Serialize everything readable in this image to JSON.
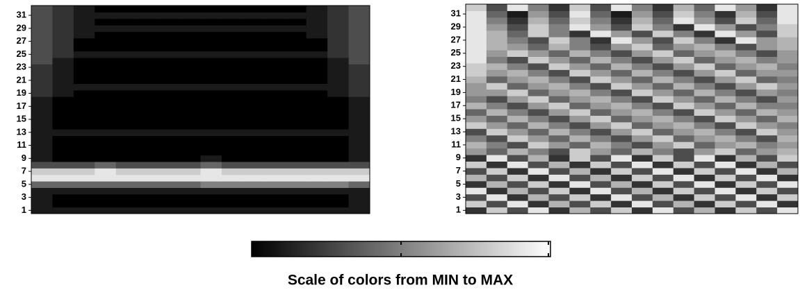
{
  "chart_data": [
    {
      "type": "heatmap",
      "ylim": [
        0.5,
        32.5
      ],
      "yticks": [
        1,
        3,
        5,
        7,
        9,
        11,
        13,
        15,
        17,
        19,
        21,
        23,
        25,
        27,
        29,
        31
      ],
      "z": [
        [
          0.1,
          0.1,
          0.1,
          0.1,
          0.1,
          0.1,
          0.1,
          0.1,
          0.1,
          0.1,
          0.1,
          0.1,
          0.1,
          0.1,
          0.1,
          0.1
        ],
        [
          0.1,
          0.0,
          0.0,
          0.0,
          0.0,
          0.0,
          0.0,
          0.0,
          0.0,
          0.0,
          0.0,
          0.0,
          0.0,
          0.0,
          0.0,
          0.1
        ],
        [
          0.1,
          0.0,
          0.0,
          0.0,
          0.0,
          0.0,
          0.0,
          0.0,
          0.0,
          0.0,
          0.0,
          0.0,
          0.0,
          0.0,
          0.0,
          0.1
        ],
        [
          0.1,
          0.1,
          0.1,
          0.1,
          0.1,
          0.1,
          0.1,
          0.1,
          0.1,
          0.1,
          0.1,
          0.1,
          0.1,
          0.1,
          0.1,
          0.1
        ],
        [
          0.4,
          0.4,
          0.4,
          0.4,
          0.4,
          0.4,
          0.4,
          0.4,
          0.5,
          0.5,
          0.5,
          0.5,
          0.5,
          0.5,
          0.5,
          0.4
        ],
        [
          0.9,
          0.9,
          0.9,
          0.9,
          0.9,
          0.9,
          0.9,
          0.9,
          0.9,
          0.9,
          0.9,
          0.9,
          0.9,
          0.9,
          0.9,
          0.9
        ],
        [
          0.8,
          0.8,
          0.8,
          0.9,
          0.8,
          0.8,
          0.8,
          0.8,
          0.9,
          0.8,
          0.8,
          0.8,
          0.8,
          0.8,
          0.8,
          0.8
        ],
        [
          0.3,
          0.3,
          0.3,
          0.4,
          0.3,
          0.3,
          0.3,
          0.3,
          0.4,
          0.3,
          0.3,
          0.3,
          0.3,
          0.3,
          0.3,
          0.3
        ],
        [
          0.1,
          0.0,
          0.0,
          0.0,
          0.0,
          0.0,
          0.0,
          0.0,
          0.1,
          0.0,
          0.0,
          0.0,
          0.0,
          0.0,
          0.0,
          0.1
        ],
        [
          0.1,
          0.0,
          0.0,
          0.0,
          0.0,
          0.0,
          0.0,
          0.0,
          0.0,
          0.0,
          0.0,
          0.0,
          0.0,
          0.0,
          0.0,
          0.1
        ],
        [
          0.1,
          0.0,
          0.0,
          0.0,
          0.0,
          0.0,
          0.0,
          0.0,
          0.0,
          0.0,
          0.0,
          0.0,
          0.0,
          0.0,
          0.0,
          0.1
        ],
        [
          0.1,
          0.0,
          0.0,
          0.0,
          0.0,
          0.0,
          0.0,
          0.0,
          0.0,
          0.0,
          0.0,
          0.0,
          0.0,
          0.0,
          0.0,
          0.1
        ],
        [
          0.1,
          0.1,
          0.1,
          0.1,
          0.1,
          0.1,
          0.1,
          0.1,
          0.1,
          0.1,
          0.1,
          0.1,
          0.1,
          0.1,
          0.1,
          0.1
        ],
        [
          0.1,
          0.0,
          0.0,
          0.0,
          0.0,
          0.0,
          0.0,
          0.0,
          0.0,
          0.0,
          0.0,
          0.0,
          0.0,
          0.0,
          0.0,
          0.1
        ],
        [
          0.1,
          0.0,
          0.0,
          0.0,
          0.0,
          0.0,
          0.0,
          0.0,
          0.0,
          0.0,
          0.0,
          0.0,
          0.0,
          0.0,
          0.0,
          0.1
        ],
        [
          0.1,
          0.0,
          0.0,
          0.0,
          0.0,
          0.0,
          0.0,
          0.0,
          0.0,
          0.0,
          0.0,
          0.0,
          0.0,
          0.0,
          0.0,
          0.1
        ],
        [
          0.1,
          0.0,
          0.0,
          0.0,
          0.0,
          0.0,
          0.0,
          0.0,
          0.0,
          0.0,
          0.0,
          0.0,
          0.0,
          0.0,
          0.0,
          0.1
        ],
        [
          0.1,
          0.0,
          0.0,
          0.0,
          0.0,
          0.0,
          0.0,
          0.0,
          0.0,
          0.0,
          0.0,
          0.0,
          0.0,
          0.0,
          0.0,
          0.1
        ],
        [
          0.2,
          0.1,
          0.0,
          0.0,
          0.0,
          0.0,
          0.0,
          0.0,
          0.0,
          0.0,
          0.0,
          0.0,
          0.0,
          0.0,
          0.1,
          0.2
        ],
        [
          0.2,
          0.1,
          0.1,
          0.1,
          0.1,
          0.1,
          0.1,
          0.1,
          0.1,
          0.1,
          0.1,
          0.1,
          0.1,
          0.1,
          0.1,
          0.2
        ],
        [
          0.2,
          0.1,
          0.0,
          0.0,
          0.0,
          0.0,
          0.0,
          0.0,
          0.0,
          0.0,
          0.0,
          0.0,
          0.0,
          0.0,
          0.1,
          0.2
        ],
        [
          0.2,
          0.1,
          0.0,
          0.0,
          0.0,
          0.0,
          0.0,
          0.0,
          0.0,
          0.0,
          0.0,
          0.0,
          0.0,
          0.0,
          0.1,
          0.2
        ],
        [
          0.2,
          0.1,
          0.0,
          0.0,
          0.0,
          0.0,
          0.0,
          0.0,
          0.0,
          0.0,
          0.0,
          0.0,
          0.0,
          0.0,
          0.1,
          0.2
        ],
        [
          0.3,
          0.1,
          0.0,
          0.0,
          0.0,
          0.0,
          0.0,
          0.0,
          0.0,
          0.0,
          0.0,
          0.0,
          0.0,
          0.0,
          0.1,
          0.3
        ],
        [
          0.3,
          0.2,
          0.1,
          0.1,
          0.1,
          0.1,
          0.1,
          0.1,
          0.1,
          0.1,
          0.1,
          0.1,
          0.1,
          0.1,
          0.2,
          0.3
        ],
        [
          0.3,
          0.2,
          0.0,
          0.0,
          0.0,
          0.0,
          0.0,
          0.0,
          0.0,
          0.0,
          0.0,
          0.0,
          0.0,
          0.0,
          0.2,
          0.3
        ],
        [
          0.3,
          0.2,
          0.0,
          0.0,
          0.0,
          0.0,
          0.0,
          0.0,
          0.0,
          0.0,
          0.0,
          0.0,
          0.0,
          0.0,
          0.2,
          0.3
        ],
        [
          0.3,
          0.2,
          0.1,
          0.0,
          0.0,
          0.0,
          0.0,
          0.0,
          0.0,
          0.0,
          0.0,
          0.0,
          0.0,
          0.1,
          0.2,
          0.3
        ],
        [
          0.3,
          0.2,
          0.1,
          0.1,
          0.1,
          0.1,
          0.1,
          0.1,
          0.1,
          0.1,
          0.1,
          0.1,
          0.1,
          0.1,
          0.2,
          0.3
        ],
        [
          0.3,
          0.2,
          0.1,
          0.0,
          0.0,
          0.0,
          0.0,
          0.0,
          0.0,
          0.0,
          0.0,
          0.0,
          0.0,
          0.1,
          0.2,
          0.3
        ],
        [
          0.3,
          0.2,
          0.1,
          0.1,
          0.1,
          0.1,
          0.1,
          0.1,
          0.1,
          0.1,
          0.1,
          0.1,
          0.1,
          0.1,
          0.2,
          0.3
        ],
        [
          0.3,
          0.2,
          0.1,
          0.0,
          0.0,
          0.0,
          0.0,
          0.0,
          0.0,
          0.0,
          0.0,
          0.0,
          0.0,
          0.1,
          0.2,
          0.3
        ]
      ]
    },
    {
      "type": "heatmap",
      "ylim": [
        0.5,
        32.5
      ],
      "yticks": [
        1,
        3,
        5,
        7,
        9,
        11,
        13,
        15,
        17,
        19,
        21,
        23,
        25,
        27,
        29,
        31
      ],
      "z": [
        [
          0.2,
          0.8,
          0.3,
          0.9,
          0.2,
          0.7,
          0.3,
          0.8,
          0.2,
          0.9,
          0.3,
          0.7,
          0.2,
          0.8,
          0.3,
          0.9
        ],
        [
          0.8,
          0.3,
          0.9,
          0.2,
          0.7,
          0.3,
          0.8,
          0.2,
          0.9,
          0.3,
          0.7,
          0.2,
          0.8,
          0.3,
          0.9,
          0.2
        ],
        [
          0.3,
          0.9,
          0.2,
          0.7,
          0.3,
          0.8,
          0.2,
          0.9,
          0.3,
          0.7,
          0.2,
          0.8,
          0.3,
          0.9,
          0.2,
          0.8
        ],
        [
          0.9,
          0.2,
          0.7,
          0.3,
          0.8,
          0.2,
          0.9,
          0.3,
          0.7,
          0.2,
          0.8,
          0.3,
          0.9,
          0.2,
          0.8,
          0.3
        ],
        [
          0.2,
          0.7,
          0.3,
          0.8,
          0.2,
          0.9,
          0.3,
          0.7,
          0.2,
          0.8,
          0.3,
          0.9,
          0.2,
          0.8,
          0.3,
          0.9
        ],
        [
          0.7,
          0.3,
          0.8,
          0.2,
          0.9,
          0.3,
          0.7,
          0.2,
          0.8,
          0.3,
          0.9,
          0.2,
          0.8,
          0.3,
          0.9,
          0.2
        ],
        [
          0.3,
          0.8,
          0.2,
          0.9,
          0.3,
          0.7,
          0.2,
          0.8,
          0.3,
          0.9,
          0.2,
          0.8,
          0.3,
          0.9,
          0.2,
          0.7
        ],
        [
          0.8,
          0.2,
          0.9,
          0.3,
          0.7,
          0.2,
          0.8,
          0.3,
          0.9,
          0.2,
          0.8,
          0.3,
          0.9,
          0.2,
          0.7,
          0.3
        ],
        [
          0.2,
          0.9,
          0.3,
          0.7,
          0.2,
          0.8,
          0.3,
          0.9,
          0.2,
          0.8,
          0.3,
          0.9,
          0.2,
          0.7,
          0.3,
          0.8
        ],
        [
          0.6,
          0.4,
          0.7,
          0.5,
          0.3,
          0.8,
          0.6,
          0.4,
          0.7,
          0.5,
          0.3,
          0.6,
          0.8,
          0.4,
          0.6,
          0.7
        ],
        [
          0.7,
          0.5,
          0.3,
          0.8,
          0.6,
          0.4,
          0.7,
          0.5,
          0.3,
          0.6,
          0.8,
          0.4,
          0.6,
          0.7,
          0.5,
          0.6
        ],
        [
          0.5,
          0.3,
          0.8,
          0.6,
          0.4,
          0.7,
          0.5,
          0.3,
          0.6,
          0.8,
          0.4,
          0.6,
          0.7,
          0.5,
          0.3,
          0.7
        ],
        [
          0.3,
          0.8,
          0.6,
          0.4,
          0.7,
          0.5,
          0.3,
          0.6,
          0.8,
          0.4,
          0.6,
          0.7,
          0.5,
          0.3,
          0.8,
          0.6
        ],
        [
          0.8,
          0.6,
          0.4,
          0.7,
          0.5,
          0.3,
          0.6,
          0.8,
          0.4,
          0.6,
          0.7,
          0.5,
          0.3,
          0.8,
          0.6,
          0.5
        ],
        [
          0.6,
          0.4,
          0.7,
          0.5,
          0.3,
          0.6,
          0.8,
          0.4,
          0.6,
          0.7,
          0.5,
          0.3,
          0.8,
          0.6,
          0.4,
          0.7
        ],
        [
          0.4,
          0.7,
          0.5,
          0.3,
          0.6,
          0.8,
          0.4,
          0.6,
          0.7,
          0.5,
          0.3,
          0.8,
          0.6,
          0.4,
          0.7,
          0.6
        ],
        [
          0.7,
          0.5,
          0.3,
          0.6,
          0.8,
          0.4,
          0.6,
          0.7,
          0.5,
          0.3,
          0.8,
          0.6,
          0.4,
          0.7,
          0.5,
          0.5
        ],
        [
          0.5,
          0.3,
          0.6,
          0.8,
          0.4,
          0.6,
          0.7,
          0.5,
          0.3,
          0.8,
          0.6,
          0.4,
          0.7,
          0.5,
          0.3,
          0.6
        ],
        [
          0.6,
          0.6,
          0.8,
          0.4,
          0.6,
          0.7,
          0.5,
          0.3,
          0.8,
          0.6,
          0.4,
          0.7,
          0.5,
          0.3,
          0.6,
          0.5
        ],
        [
          0.6,
          0.8,
          0.4,
          0.6,
          0.7,
          0.5,
          0.3,
          0.8,
          0.6,
          0.4,
          0.7,
          0.5,
          0.3,
          0.6,
          0.8,
          0.6
        ],
        [
          0.7,
          0.4,
          0.6,
          0.7,
          0.5,
          0.3,
          0.8,
          0.6,
          0.4,
          0.7,
          0.5,
          0.3,
          0.6,
          0.8,
          0.4,
          0.5
        ],
        [
          0.8,
          0.6,
          0.7,
          0.5,
          0.3,
          0.8,
          0.6,
          0.4,
          0.7,
          0.5,
          0.3,
          0.6,
          0.8,
          0.4,
          0.6,
          0.6
        ],
        [
          0.8,
          0.7,
          0.5,
          0.3,
          0.8,
          0.6,
          0.4,
          0.7,
          0.5,
          0.3,
          0.6,
          0.8,
          0.4,
          0.6,
          0.7,
          0.5
        ],
        [
          0.9,
          0.5,
          0.3,
          0.8,
          0.6,
          0.4,
          0.7,
          0.5,
          0.3,
          0.6,
          0.8,
          0.4,
          0.6,
          0.7,
          0.5,
          0.6
        ],
        [
          0.9,
          0.6,
          0.8,
          0.6,
          0.4,
          0.7,
          0.5,
          0.3,
          0.6,
          0.8,
          0.4,
          0.6,
          0.7,
          0.5,
          0.3,
          0.6
        ],
        [
          0.9,
          0.7,
          0.6,
          0.4,
          0.7,
          0.5,
          0.3,
          0.6,
          0.8,
          0.4,
          0.6,
          0.7,
          0.5,
          0.3,
          0.6,
          0.7
        ],
        [
          0.9,
          0.7,
          0.5,
          0.3,
          0.8,
          0.5,
          0.2,
          0.9,
          0.6,
          0.3,
          0.8,
          0.5,
          0.2,
          0.9,
          0.6,
          0.7
        ],
        [
          0.9,
          0.7,
          0.4,
          0.8,
          0.5,
          0.2,
          0.9,
          0.6,
          0.3,
          0.8,
          0.5,
          0.2,
          0.9,
          0.6,
          0.3,
          0.8
        ],
        [
          0.9,
          0.6,
          0.3,
          0.8,
          0.5,
          0.9,
          0.6,
          0.3,
          0.8,
          0.5,
          0.2,
          0.9,
          0.6,
          0.3,
          0.5,
          0.8
        ],
        [
          0.9,
          0.5,
          0.2,
          0.7,
          0.4,
          0.8,
          0.5,
          0.2,
          0.7,
          0.4,
          0.9,
          0.6,
          0.3,
          0.8,
          0.4,
          0.9
        ],
        [
          0.9,
          0.4,
          0.1,
          0.6,
          0.3,
          0.9,
          0.4,
          0.1,
          0.6,
          0.3,
          0.8,
          0.5,
          0.2,
          0.7,
          0.3,
          0.9
        ],
        [
          0.8,
          0.3,
          0.9,
          0.5,
          0.2,
          0.8,
          0.3,
          0.9,
          0.5,
          0.2,
          0.7,
          0.4,
          0.9,
          0.6,
          0.2,
          0.9
        ]
      ]
    }
  ],
  "caption": "Scale of colors from MIN to MAX"
}
